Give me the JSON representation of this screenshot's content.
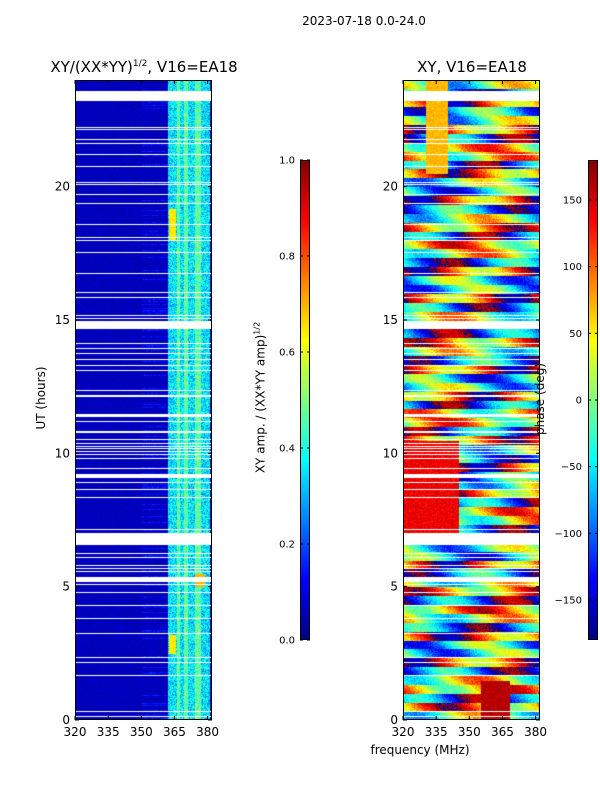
{
  "suptitle": "2023-07-18 0.0-24.0",
  "chart_data": [
    {
      "type": "heatmap",
      "title": "XY/(XX*YY)",
      "title_sup": "1/2",
      "title_suffix": ", V16=EA18",
      "xlabel": "",
      "ylabel": "UT (hours)",
      "xlim": [
        320,
        382
      ],
      "ylim": [
        0,
        24
      ],
      "xticks": [
        320,
        335,
        350,
        365,
        380
      ],
      "yticks": [
        0,
        5,
        10,
        15,
        20
      ],
      "colormap": "jet",
      "colorbar": {
        "label": "XY amp. / (XX*YY amp)",
        "label_sup": "1/2",
        "range": [
          0.0,
          1.0
        ],
        "ticks": [
          "0.0",
          "0.2",
          "0.4",
          "0.6",
          "0.8",
          "1.0"
        ]
      }
    },
    {
      "type": "heatmap",
      "title": "XY, V16=EA18",
      "xlabel": "frequency (MHz)",
      "ylabel": "",
      "xlim": [
        320,
        382
      ],
      "ylim": [
        0,
        24
      ],
      "xticks": [
        320,
        335,
        350,
        365,
        380
      ],
      "yticks": [
        0,
        5,
        10,
        15,
        20
      ],
      "colormap": "jet",
      "colorbar": {
        "label": "phase (deg)",
        "range": [
          -180,
          180
        ],
        "ticks": [
          "150",
          "100",
          "50",
          "0",
          "−50",
          "−100",
          "−150"
        ]
      }
    }
  ]
}
